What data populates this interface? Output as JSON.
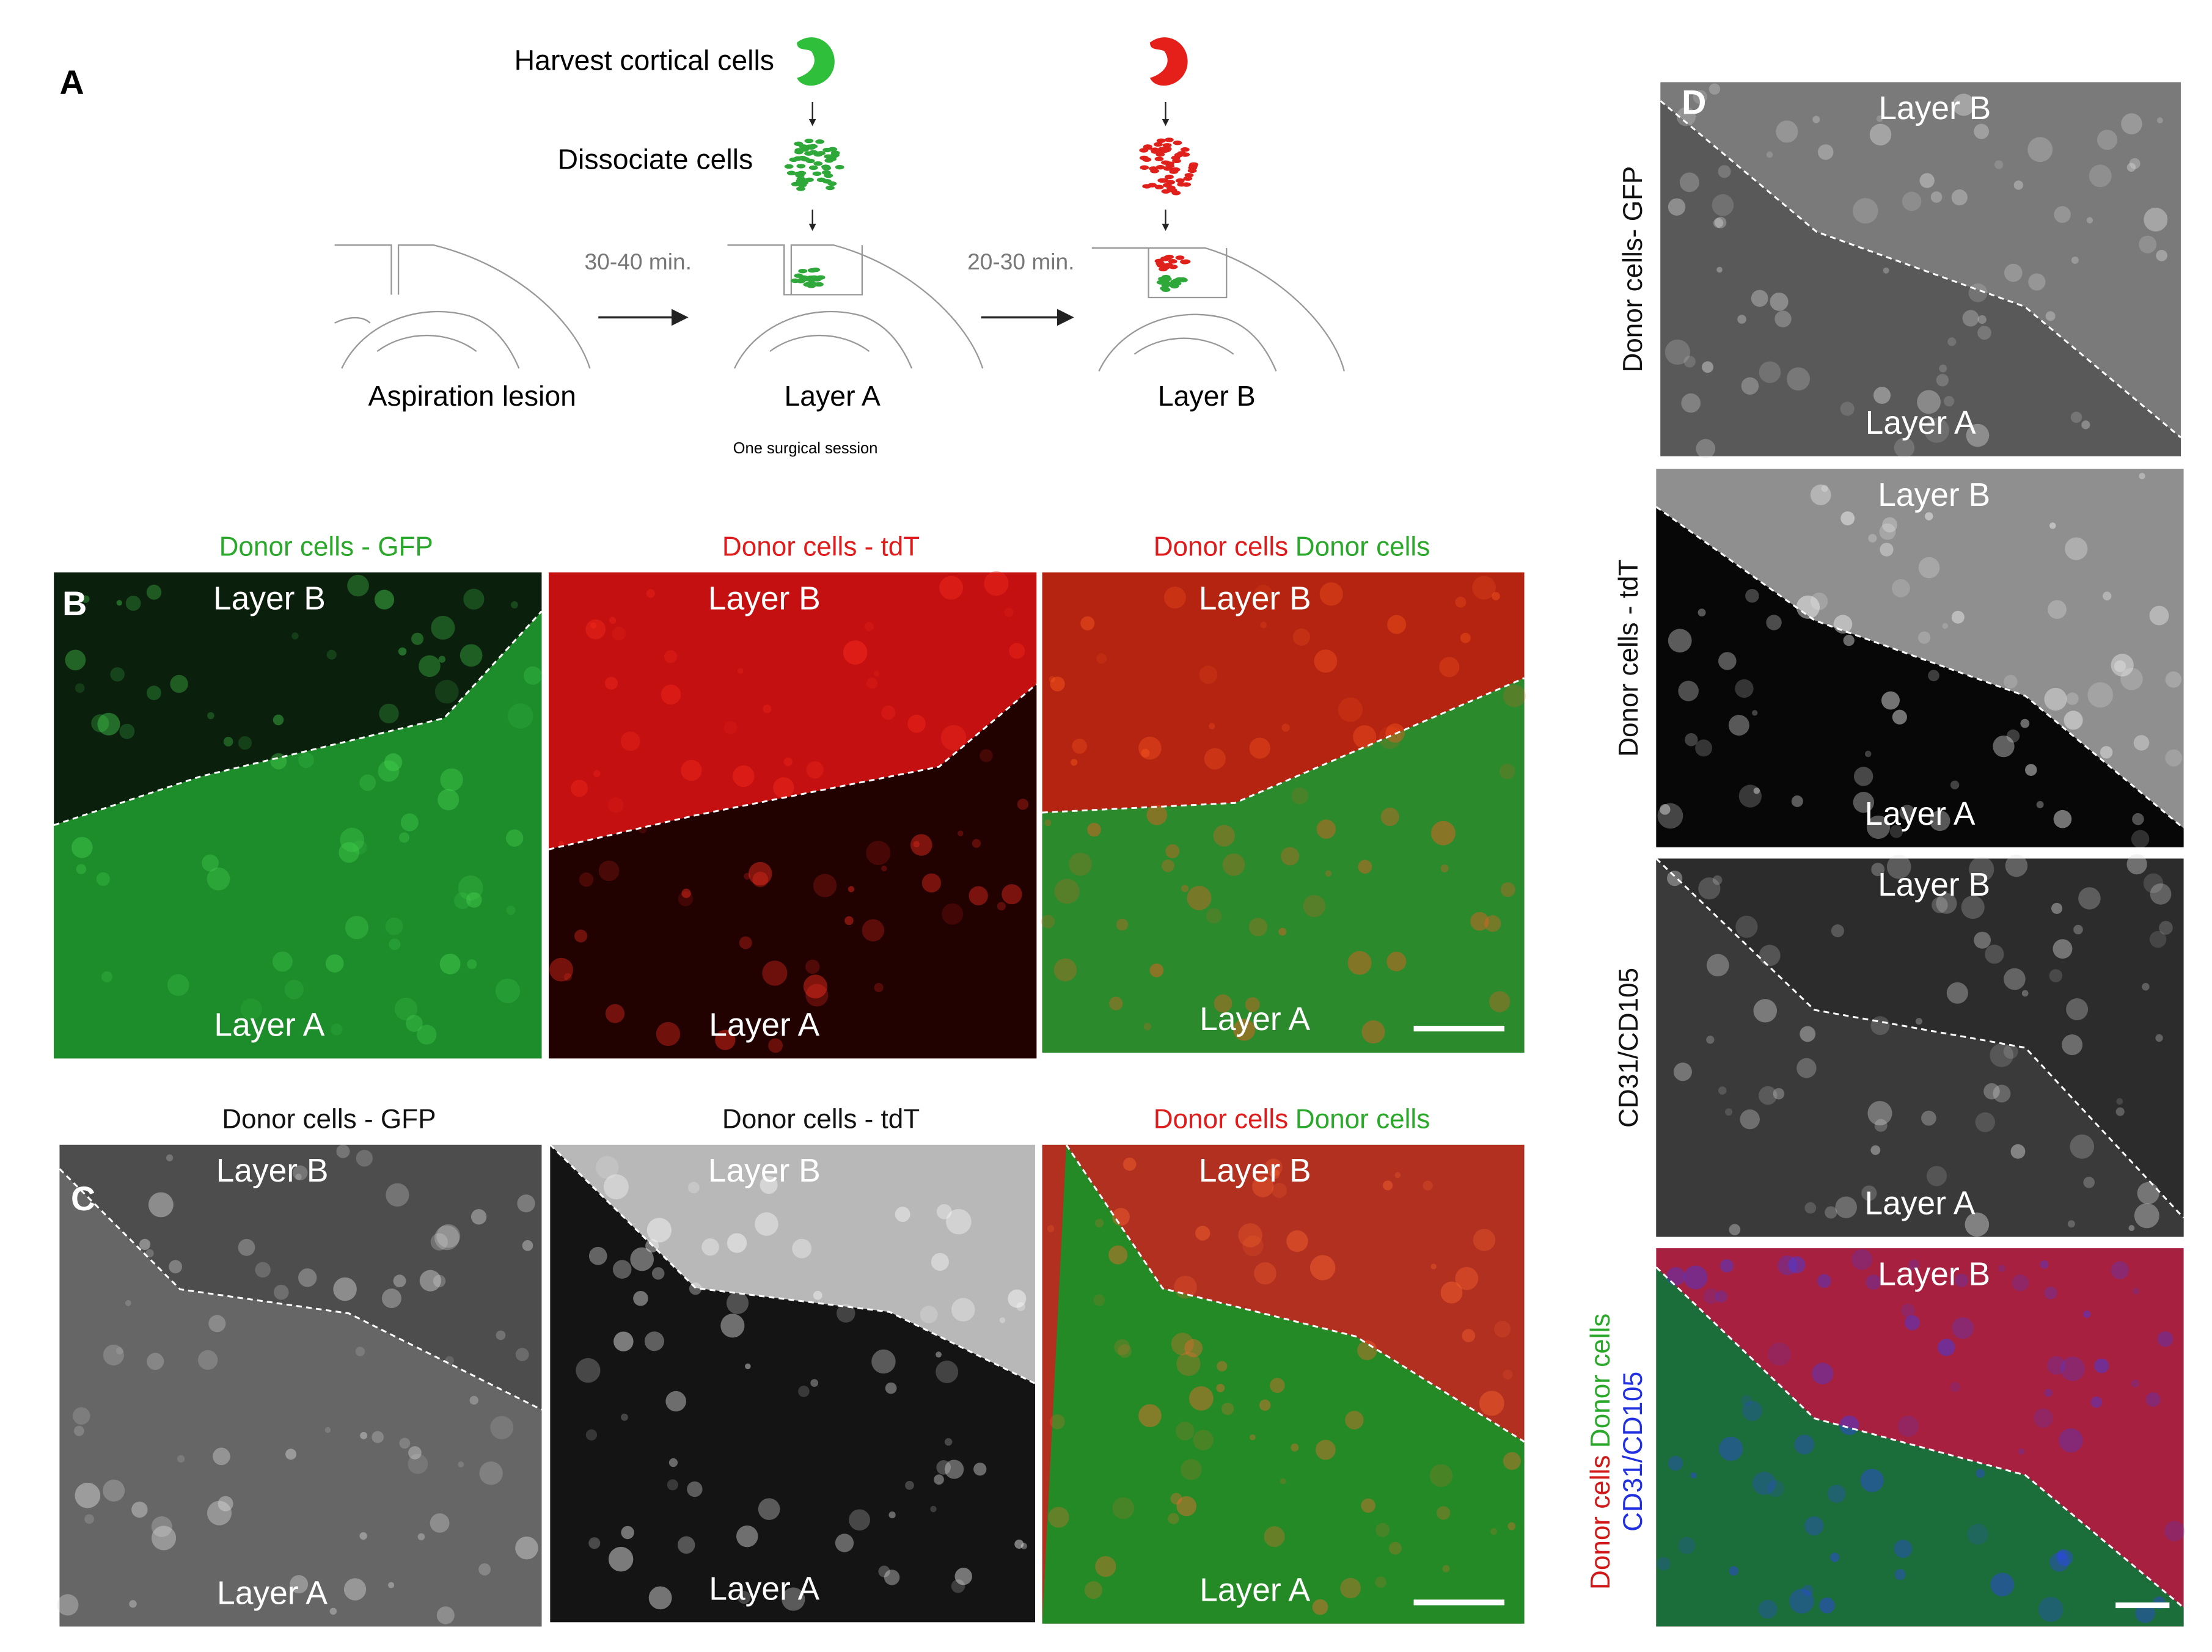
{
  "panel_a": {
    "label": "A",
    "harvest": "Harvest cortical cells",
    "dissociate": "Dissociate cells",
    "time_1": "30-40 min.",
    "time_2": "20-30 min.",
    "stages": [
      "Aspiration lesion",
      "Layer A",
      "Layer B"
    ],
    "note": "One surgical session"
  },
  "panel_b": {
    "label": "B",
    "images": [
      {
        "title": [
          "Donor cells - GFP"
        ],
        "top": "Layer B",
        "bottom": "Layer A"
      },
      {
        "title": [
          "Donor cells - tdT"
        ],
        "top": "Layer B",
        "bottom": "Layer A"
      },
      {
        "title": [
          "Donor cells",
          "Donor cells"
        ],
        "top": "Layer B",
        "bottom": "Layer A"
      }
    ]
  },
  "panel_c": {
    "label": "C",
    "images": [
      {
        "title": [
          "Donor cells - GFP"
        ],
        "top": "Layer B",
        "bottom": "Layer A"
      },
      {
        "title": [
          "Donor cells - tdT"
        ],
        "top": "Layer B",
        "bottom": "Layer A"
      },
      {
        "title": [
          "Donor cells",
          "Donor cells"
        ],
        "top": "Layer B",
        "bottom": "Layer A"
      }
    ]
  },
  "panel_d": {
    "label": "D",
    "images": [
      {
        "title": [
          "Donor cells- GFP"
        ],
        "top": "Layer B",
        "bottom": "Layer A"
      },
      {
        "title": [
          "Donor cells - tdT"
        ],
        "top": "Layer B",
        "bottom": "Layer A"
      },
      {
        "title": [
          "CD31/CD105"
        ],
        "top": "Layer B",
        "bottom": "Layer A"
      },
      {
        "title": [
          "Donor cells",
          "Donor cells",
          "CD31/CD105"
        ],
        "top": "Layer B"
      }
    ]
  }
}
